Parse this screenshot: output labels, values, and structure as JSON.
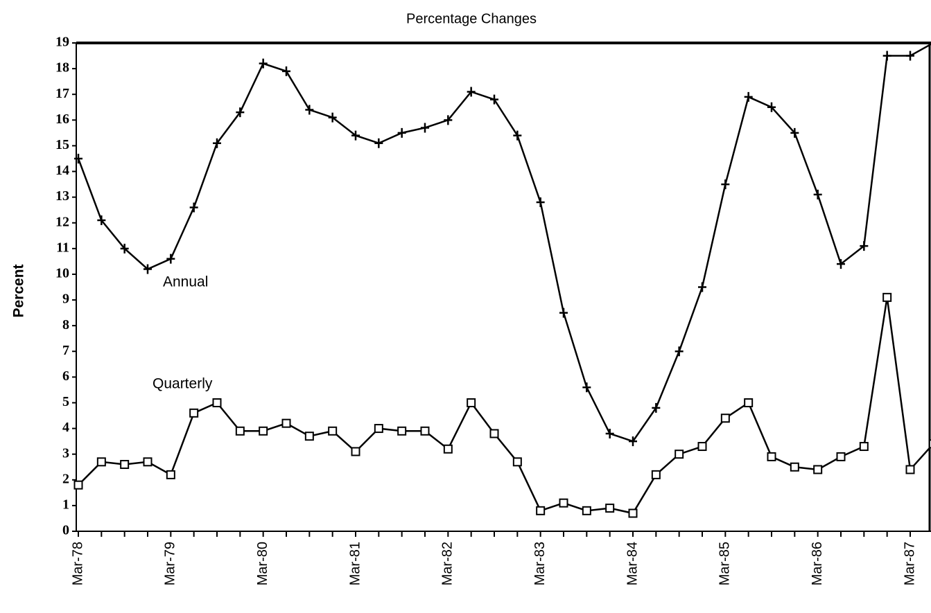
{
  "chart_data": {
    "type": "line",
    "title": "Percentage Changes",
    "y_label": "Percent",
    "categories": [
      "Mar-78",
      null,
      null,
      null,
      "Mar-79",
      null,
      null,
      null,
      "Mar-80",
      null,
      null,
      null,
      "Mar-81",
      null,
      null,
      null,
      "Mar-82",
      null,
      null,
      null,
      "Mar-83",
      null,
      null,
      null,
      "Mar-84",
      null,
      null,
      null,
      "Mar-85",
      null,
      null,
      null,
      "Mar-86",
      null,
      null,
      null,
      "Mar-87",
      null
    ],
    "series": [
      {
        "name": "Annual",
        "color": "#000000",
        "marker": "plus",
        "values": [
          14.5,
          12.1,
          11.0,
          10.2,
          10.6,
          12.6,
          15.1,
          16.3,
          18.2,
          17.9,
          16.4,
          16.1,
          15.4,
          15.1,
          15.5,
          15.7,
          16.0,
          17.1,
          16.8,
          15.4,
          12.8,
          8.5,
          5.6,
          3.8,
          3.5,
          4.8,
          7.0,
          9.5,
          13.5,
          16.9,
          16.5,
          15.5,
          13.1,
          10.4,
          11.1,
          18.5,
          18.5,
          19.0
        ]
      },
      {
        "name": "Quarterly",
        "color": "#000000",
        "marker": "square",
        "values": [
          1.8,
          2.7,
          2.6,
          2.7,
          2.2,
          4.6,
          5.0,
          3.9,
          3.9,
          4.2,
          3.7,
          3.9,
          3.1,
          4.0,
          3.9,
          3.9,
          3.2,
          5.0,
          3.8,
          2.7,
          0.8,
          1.1,
          0.8,
          0.9,
          0.7,
          2.2,
          3.0,
          3.3,
          4.4,
          5.0,
          2.9,
          2.5,
          2.4,
          2.9,
          3.3,
          9.1,
          2.4,
          3.4
        ]
      }
    ],
    "ylim": [
      0,
      19
    ],
    "yticks": [
      0,
      1,
      2,
      3,
      4,
      5,
      6,
      7,
      8,
      9,
      10,
      11,
      12,
      13,
      14,
      15,
      16,
      17,
      18,
      19
    ],
    "grid": false
  }
}
